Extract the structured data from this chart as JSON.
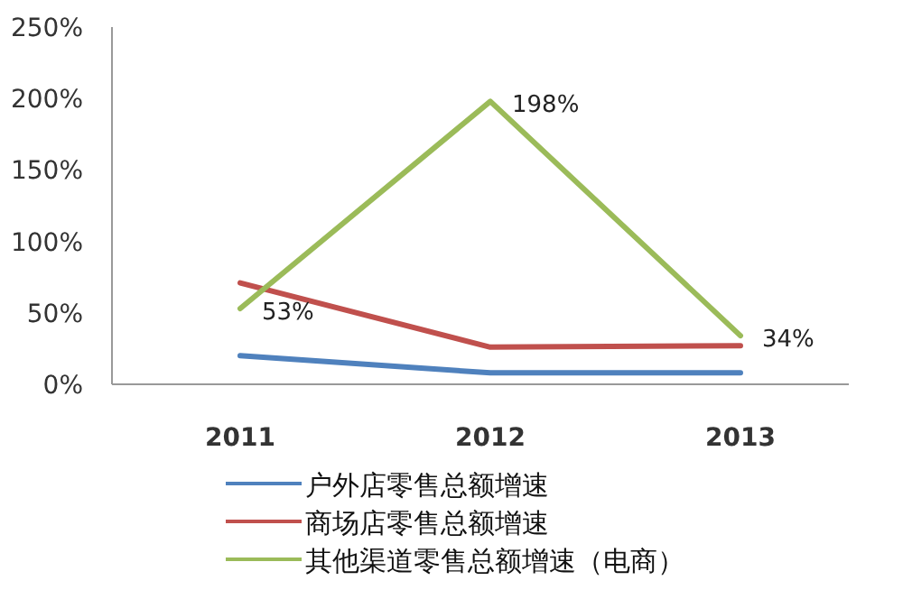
{
  "chart_data": {
    "type": "line",
    "categories": [
      "2011",
      "2012",
      "2013"
    ],
    "ylim": [
      0,
      250
    ],
    "yticks": [
      {
        "value": 0,
        "label": "0%"
      },
      {
        "value": 50,
        "label": "50%"
      },
      {
        "value": 100,
        "label": "100%"
      },
      {
        "value": 150,
        "label": "150%"
      },
      {
        "value": 200,
        "label": "200%"
      },
      {
        "value": 250,
        "label": "250%"
      }
    ],
    "grid": false,
    "legend": "bottom",
    "marker": "none",
    "line_style": "solid",
    "series": [
      {
        "name": "户外店零售总额增速",
        "color": "#4f81bd",
        "values": [
          20,
          8,
          8
        ]
      },
      {
        "name": "商场店零售总额增速",
        "color": "#c0504d",
        "values": [
          71,
          26,
          27
        ]
      },
      {
        "name": "其他渠道零售总额增速（电商）",
        "color": "#9bbb59",
        "values": [
          53,
          198,
          34
        ],
        "value_labels": [
          "53%",
          "198%",
          "34%"
        ]
      }
    ]
  }
}
